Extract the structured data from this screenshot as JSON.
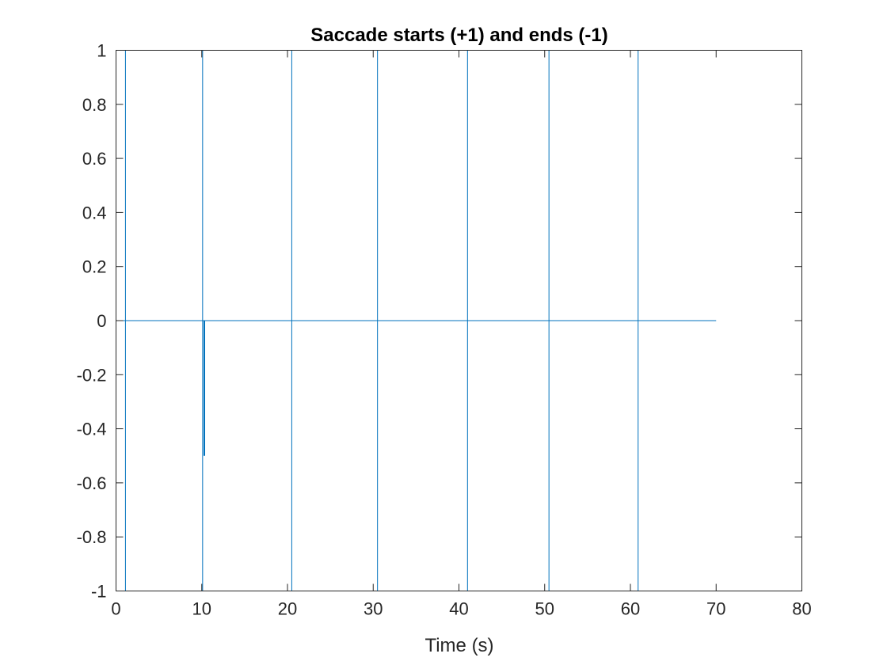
{
  "chart_data": {
    "type": "line",
    "title": "Saccade starts (+1) and ends (-1)",
    "xlabel": "Time (s)",
    "ylabel": "",
    "xlim": [
      0,
      80
    ],
    "ylim": [
      -1,
      1
    ],
    "x_ticks": [
      0,
      10,
      20,
      30,
      40,
      50,
      60,
      70,
      80
    ],
    "y_ticks": [
      -1,
      -0.8,
      -0.6,
      -0.4,
      -0.2,
      0,
      0.2,
      0.4,
      0.6,
      0.8,
      1
    ],
    "x_tick_labels": [
      "0",
      "10",
      "20",
      "30",
      "40",
      "50",
      "60",
      "70",
      "80"
    ],
    "y_tick_labels": [
      "-1",
      "-0.8",
      "-0.6",
      "-0.4",
      "-0.2",
      "0",
      "0.2",
      "0.4",
      "0.6",
      "0.8",
      "1"
    ],
    "grid": false,
    "box": true,
    "line_color": "#0072bd",
    "series": [
      {
        "x_range": [
          0,
          70
        ],
        "baseline": 0,
        "spikes": [
          {
            "x": 1.1,
            "y_min": -1,
            "y_max": 1
          },
          {
            "x": 10.1,
            "y_min": -1,
            "y_max": 1
          },
          {
            "x": 10.3,
            "y_min": -0.5,
            "y_max": 0
          },
          {
            "x": 20.5,
            "y_min": -1,
            "y_max": 1
          },
          {
            "x": 30.5,
            "y_min": -1,
            "y_max": 1
          },
          {
            "x": 41.0,
            "y_min": -1,
            "y_max": 1
          },
          {
            "x": 50.5,
            "y_min": -1,
            "y_max": 1
          },
          {
            "x": 60.9,
            "y_min": -1,
            "y_max": 1
          }
        ]
      }
    ]
  }
}
